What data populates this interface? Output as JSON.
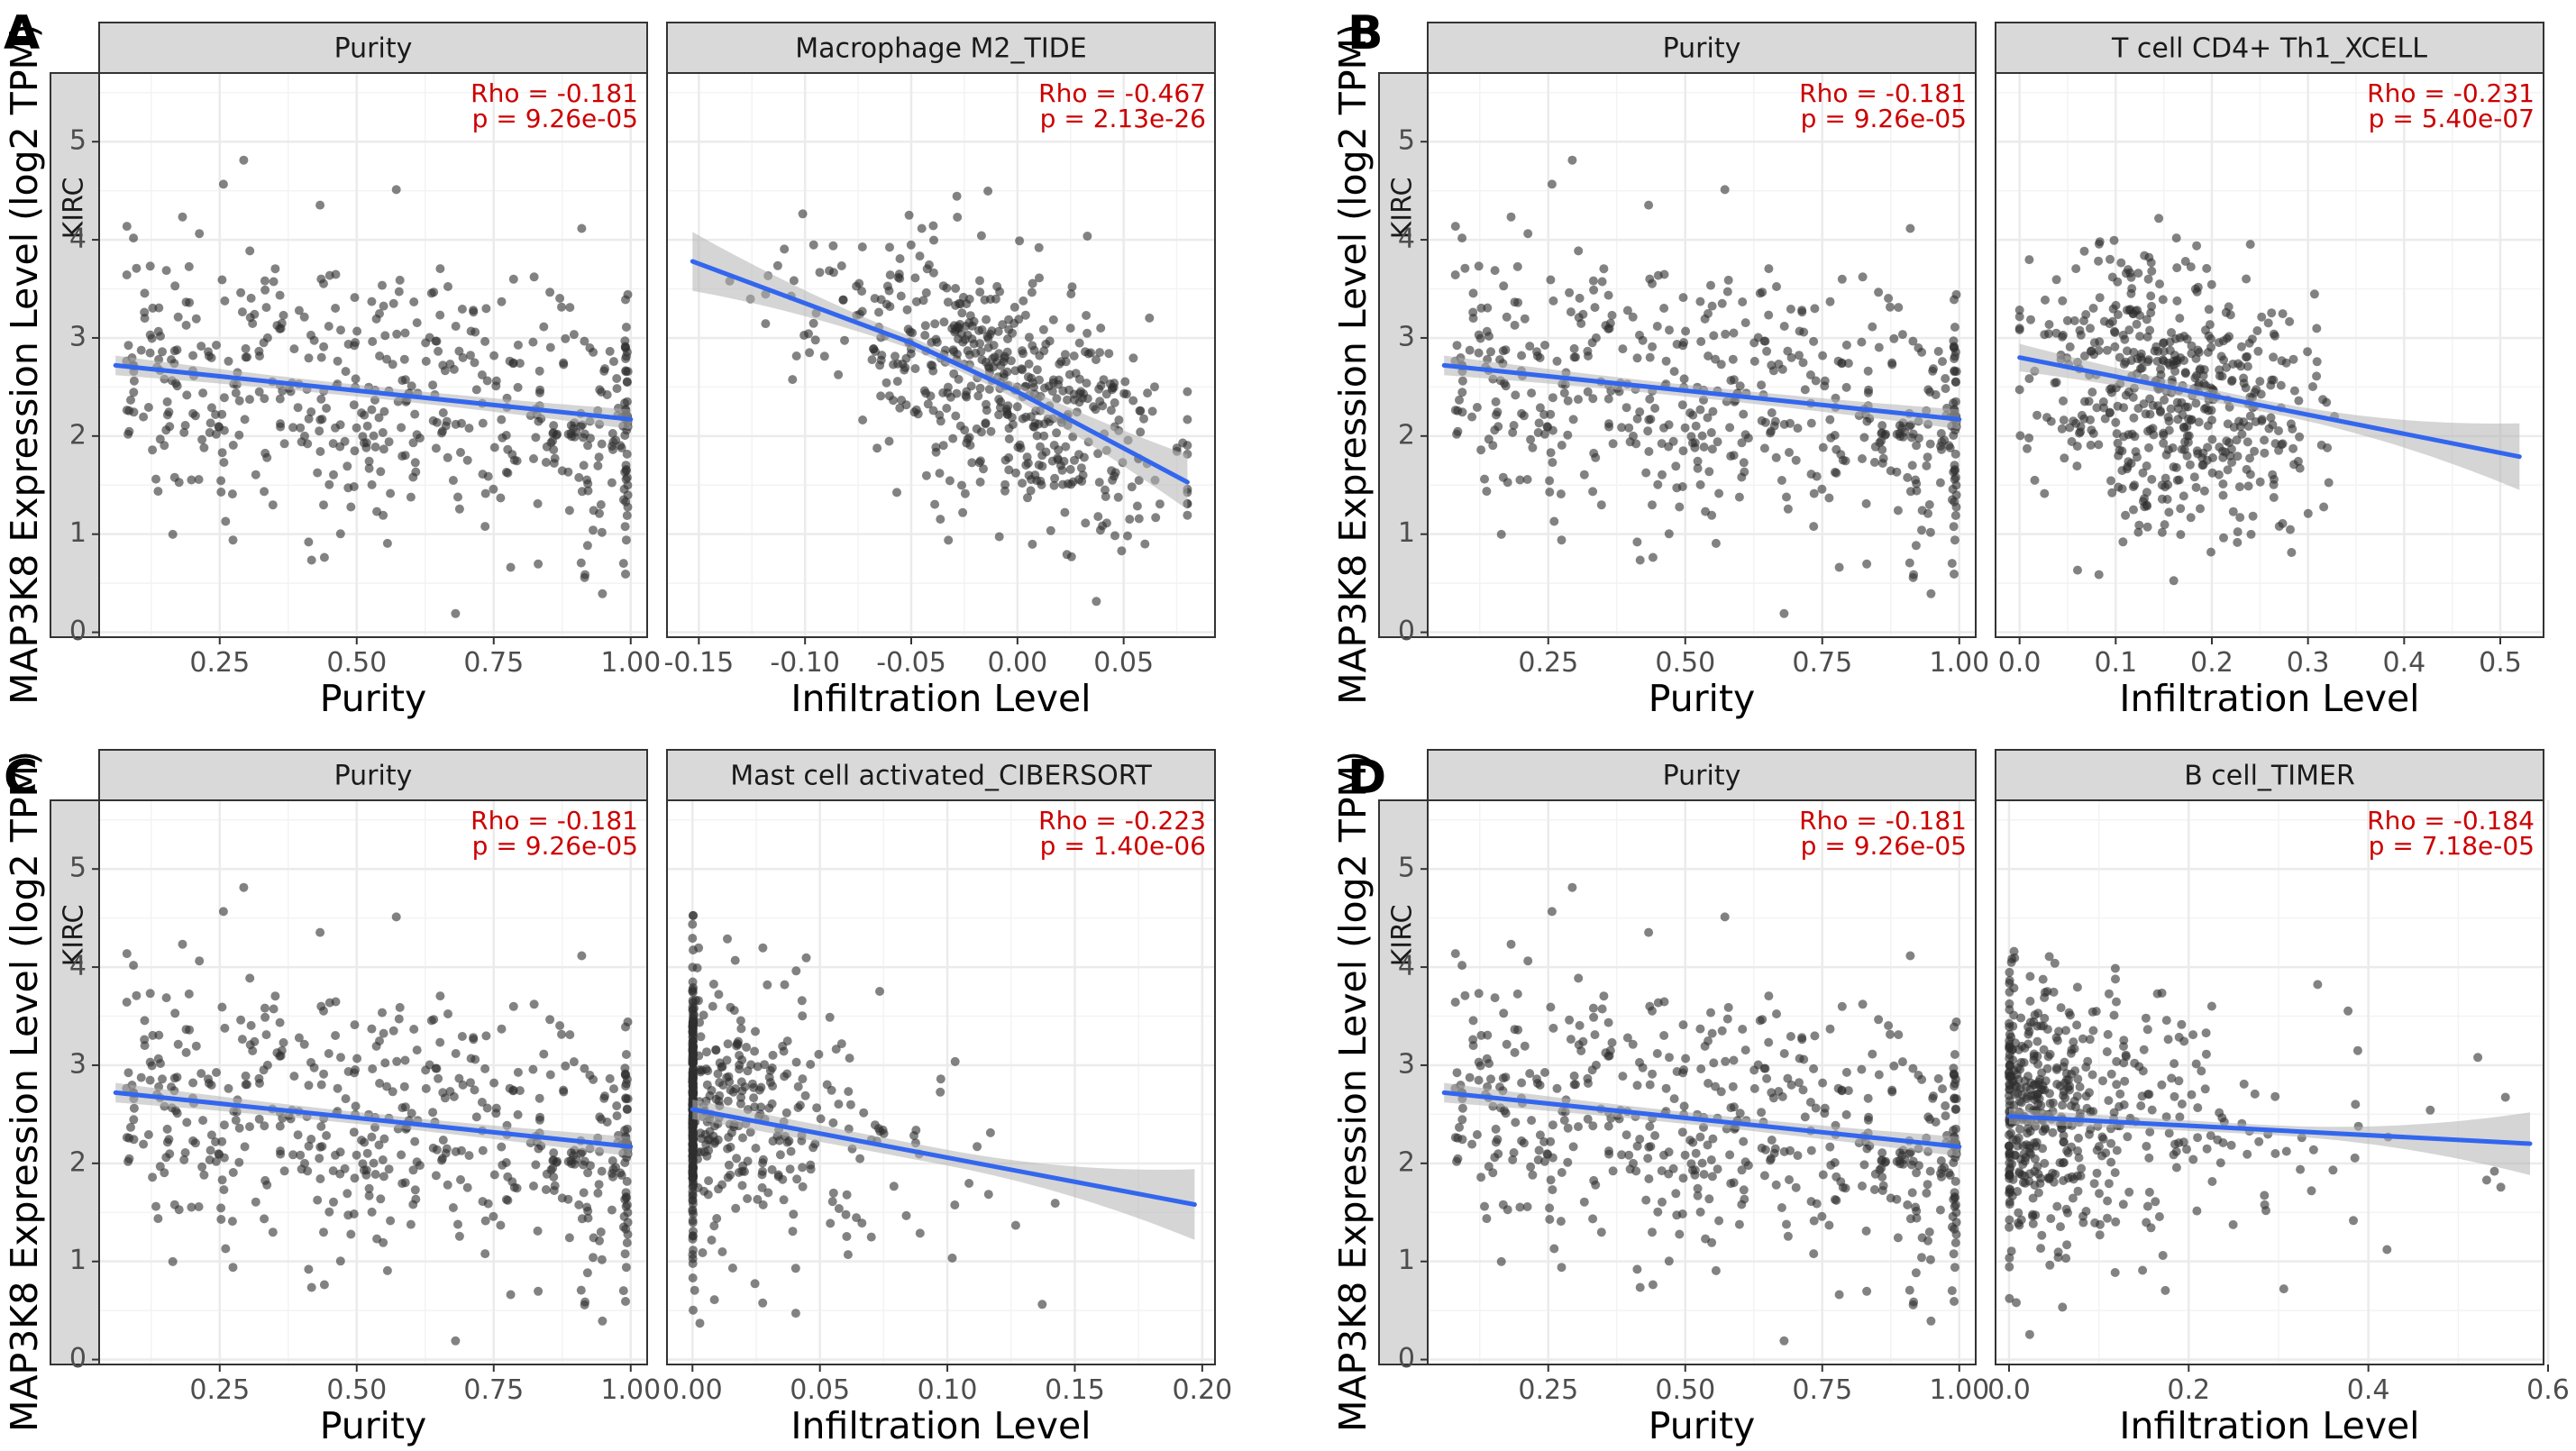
{
  "figure": {
    "y_label": "MAP3K8 Expression Level (log2 TPM)",
    "row_strip": "KIRC",
    "colors": {
      "point": "#2f2f2f",
      "fit_line": "#3366ee",
      "ci_band": "#b3b3b3",
      "strip_bg": "#d9d9d9",
      "stat_text": "#cc0000",
      "grid": "#ebebeb"
    }
  },
  "chart_data": [
    {
      "type": "scatter",
      "panel": "A",
      "title": "Purity",
      "xlabel": "Purity",
      "xlim": [
        0.03,
        1.03
      ],
      "ylim": [
        -0.05,
        5.7
      ],
      "xticks": [
        0.25,
        0.5,
        0.75,
        1.0
      ],
      "xtick_labels": [
        "0.25",
        "0.50",
        "0.75",
        "1.00"
      ],
      "yticks": [
        0,
        1,
        2,
        3,
        4,
        5
      ],
      "ytick_labels": [
        "0",
        "1",
        "2",
        "3",
        "4",
        "5"
      ],
      "rho": "Rho = -0.181",
      "p": "p = 9.26e-05",
      "fit": {
        "x": [
          0.06,
          1.0
        ],
        "y": [
          2.72,
          2.17
        ]
      },
      "ci_halfwidth": [
        0.1,
        0.06,
        0.1
      ],
      "points": {
        "dist": "uniform",
        "xmin": 0.08,
        "xmax": 0.995,
        "cluster_fraction": 0.06,
        "cluster_x": 0.995,
        "noise_sd": 0.72,
        "seed": 11
      }
    },
    {
      "type": "scatter",
      "panel": "A",
      "title": "Macrophage M2_TIDE",
      "xlabel": "Infiltration Level",
      "xlim": [
        -0.165,
        0.093
      ],
      "ylim": [
        -0.05,
        5.7
      ],
      "xticks": [
        -0.15,
        -0.1,
        -0.05,
        0.0,
        0.05
      ],
      "xtick_labels": [
        "-0.15",
        "-0.10",
        "-0.05",
        "0.00",
        "0.05"
      ],
      "yticks": [
        0,
        1,
        2,
        3,
        4,
        5
      ],
      "ytick_labels": [
        "0",
        "1",
        "2",
        "3",
        "4",
        "5"
      ],
      "rho": "Rho = -0.467",
      "p": "p = 2.13e-26",
      "fit": {
        "x": [
          -0.153,
          -0.05,
          0.0,
          0.08
        ],
        "y": [
          3.78,
          2.95,
          2.45,
          1.53
        ]
      },
      "ci_halfwidth": [
        0.3,
        0.06,
        0.28
      ],
      "points": {
        "dist": "normal",
        "mean": -0.012,
        "sd": 0.042,
        "xmin": -0.15,
        "xmax": 0.08,
        "noise_sd": 0.62,
        "seed": 23
      }
    },
    {
      "type": "scatter",
      "panel": "B",
      "title": "Purity",
      "xlabel": "Purity",
      "xlim": [
        0.03,
        1.03
      ],
      "ylim": [
        -0.05,
        5.7
      ],
      "xticks": [
        0.25,
        0.5,
        0.75,
        1.0
      ],
      "xtick_labels": [
        "0.25",
        "0.50",
        "0.75",
        "1.00"
      ],
      "yticks": [
        0,
        1,
        2,
        3,
        4,
        5
      ],
      "ytick_labels": [
        "0",
        "1",
        "2",
        "3",
        "4",
        "5"
      ],
      "rho": "Rho = -0.181",
      "p": "p = 9.26e-05",
      "fit": {
        "x": [
          0.06,
          1.0
        ],
        "y": [
          2.72,
          2.17
        ]
      },
      "ci_halfwidth": [
        0.1,
        0.06,
        0.1
      ],
      "points": {
        "dist": "uniform",
        "xmin": 0.08,
        "xmax": 0.995,
        "cluster_fraction": 0.06,
        "cluster_x": 0.995,
        "noise_sd": 0.72,
        "seed": 11
      }
    },
    {
      "type": "scatter",
      "panel": "B",
      "title": "T cell CD4+ Th1_XCELL",
      "xlabel": "Infiltration Level",
      "xlim": [
        -0.025,
        0.545
      ],
      "ylim": [
        -0.05,
        5.7
      ],
      "xticks": [
        0.0,
        0.1,
        0.2,
        0.3,
        0.4,
        0.5
      ],
      "xtick_labels": [
        "0.0",
        "0.1",
        "0.2",
        "0.3",
        "0.4",
        "0.5"
      ],
      "yticks": [
        0,
        1,
        2,
        3,
        4,
        5
      ],
      "ytick_labels": [
        "0",
        "1",
        "2",
        "3",
        "4",
        "5"
      ],
      "rho": "Rho = -0.231",
      "p": "p = 5.40e-07",
      "fit": {
        "x": [
          0.0,
          0.52
        ],
        "y": [
          2.8,
          1.79
        ]
      },
      "ci_halfwidth": [
        0.14,
        0.06,
        0.34
      ],
      "points": {
        "dist": "normal",
        "mean": 0.16,
        "sd": 0.07,
        "xmin": 0.0,
        "xmax": 0.52,
        "noise_sd": 0.7,
        "seed": 37
      }
    },
    {
      "type": "scatter",
      "panel": "C",
      "title": "Purity",
      "xlabel": "Purity",
      "xlim": [
        0.03,
        1.03
      ],
      "ylim": [
        -0.05,
        5.7
      ],
      "xticks": [
        0.25,
        0.5,
        0.75,
        1.0
      ],
      "xtick_labels": [
        "0.25",
        "0.50",
        "0.75",
        "1.00"
      ],
      "yticks": [
        0,
        1,
        2,
        3,
        4,
        5
      ],
      "ytick_labels": [
        "0",
        "1",
        "2",
        "3",
        "4",
        "5"
      ],
      "rho": "Rho = -0.181",
      "p": "p = 9.26e-05",
      "fit": {
        "x": [
          0.06,
          1.0
        ],
        "y": [
          2.72,
          2.17
        ]
      },
      "ci_halfwidth": [
        0.1,
        0.06,
        0.1
      ],
      "points": {
        "dist": "uniform",
        "xmin": 0.08,
        "xmax": 0.995,
        "cluster_fraction": 0.06,
        "cluster_x": 0.995,
        "noise_sd": 0.72,
        "seed": 11
      }
    },
    {
      "type": "scatter",
      "panel": "C",
      "title": "Mast cell activated_CIBERSORT",
      "xlabel": "Infiltration Level",
      "xlim": [
        -0.01,
        0.205
      ],
      "ylim": [
        -0.05,
        5.7
      ],
      "xticks": [
        0.0,
        0.05,
        0.1,
        0.15,
        0.2
      ],
      "xtick_labels": [
        "0.00",
        "0.05",
        "0.10",
        "0.15",
        "0.20"
      ],
      "yticks": [
        0,
        1,
        2,
        3,
        4,
        5
      ],
      "ytick_labels": [
        "0",
        "1",
        "2",
        "3",
        "4",
        "5"
      ],
      "rho": "Rho = -0.223",
      "p": "p = 1.40e-06",
      "fit": {
        "x": [
          0.0,
          0.197
        ],
        "y": [
          2.55,
          1.58
        ]
      },
      "ci_halfwidth": [
        0.1,
        0.08,
        0.36
      ],
      "points": {
        "dist": "zero_exp",
        "zero_fraction": 0.48,
        "scale": 0.03,
        "xmin": 0.0,
        "xmax": 0.197,
        "noise_sd": 0.72,
        "seed": 53
      }
    },
    {
      "type": "scatter",
      "panel": "D",
      "title": "Purity",
      "xlabel": "Purity",
      "xlim": [
        0.03,
        1.03
      ],
      "ylim": [
        -0.05,
        5.7
      ],
      "xticks": [
        0.25,
        0.5,
        0.75,
        1.0
      ],
      "xtick_labels": [
        "0.25",
        "0.50",
        "0.75",
        "1.00"
      ],
      "yticks": [
        0,
        1,
        2,
        3,
        4,
        5
      ],
      "ytick_labels": [
        "0",
        "1",
        "2",
        "3",
        "4",
        "5"
      ],
      "rho": "Rho = -0.181",
      "p": "p = 9.26e-05",
      "fit": {
        "x": [
          0.06,
          1.0
        ],
        "y": [
          2.72,
          2.17
        ]
      },
      "ci_halfwidth": [
        0.1,
        0.06,
        0.1
      ],
      "points": {
        "dist": "uniform",
        "xmin": 0.08,
        "xmax": 0.995,
        "cluster_fraction": 0.06,
        "cluster_x": 0.995,
        "noise_sd": 0.72,
        "seed": 11
      }
    },
    {
      "type": "scatter",
      "panel": "D",
      "title": "B cell_TIMER",
      "xlabel": "Infiltration Level",
      "xlim": [
        -0.015,
        0.595
      ],
      "ylim": [
        -0.05,
        5.7
      ],
      "xticks": [
        0.0,
        0.2,
        0.4,
        0.6
      ],
      "xtick_labels": [
        "0.0",
        "0.2",
        "0.4",
        "0.6"
      ],
      "yticks": [
        0,
        1,
        2,
        3,
        4,
        5
      ],
      "ytick_labels": [
        "0",
        "1",
        "2",
        "3",
        "4",
        "5"
      ],
      "rho": "Rho = -0.184",
      "p": "p = 7.18e-05",
      "fit": {
        "x": [
          0.0,
          0.58
        ],
        "y": [
          2.48,
          2.2
        ]
      },
      "ci_halfwidth": [
        0.08,
        0.05,
        0.32
      ],
      "points": {
        "dist": "zero_exp",
        "zero_fraction": 0.12,
        "scale": 0.085,
        "xmin": 0.0,
        "xmax": 0.58,
        "noise_sd": 0.7,
        "seed": 71
      }
    }
  ]
}
